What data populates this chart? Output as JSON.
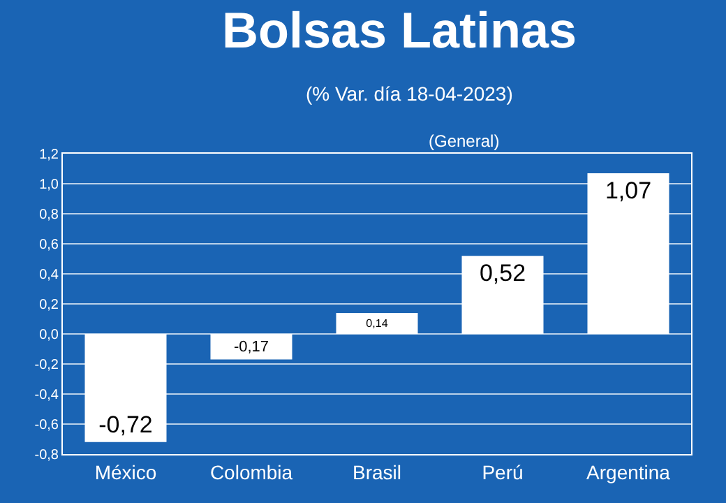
{
  "chart_data": {
    "type": "bar",
    "title": "Bolsas Latinas",
    "subtitle": "(% Var. día 18-04-2023)",
    "categories": [
      "México",
      "Colombia",
      "Brasil",
      "Perú",
      "Argentina"
    ],
    "values": [
      -0.72,
      -0.17,
      0.14,
      0.52,
      1.07
    ],
    "value_labels": [
      "-0,72",
      "-0,17",
      "0,14",
      "0,52",
      "1,07"
    ],
    "color": "#ffffff",
    "ylim": [
      -0.8,
      1.2
    ],
    "yticks": [
      {
        "value": -0.8,
        "label": "-0,8"
      },
      {
        "value": -0.6,
        "label": "-0,6"
      },
      {
        "value": -0.4,
        "label": "-0,4"
      },
      {
        "value": -0.2,
        "label": "-0,2"
      },
      {
        "value": 0.0,
        "label": "0,0"
      },
      {
        "value": 0.2,
        "label": "0,2"
      },
      {
        "value": 0.4,
        "label": "0,4"
      },
      {
        "value": 0.6,
        "label": "0,6"
      },
      {
        "value": 0.8,
        "label": "0,8"
      },
      {
        "value": 1.0,
        "label": "1,0"
      },
      {
        "value": 1.2,
        "label": "1,2"
      }
    ],
    "annotations": [
      "(General)"
    ],
    "grid": "y"
  }
}
